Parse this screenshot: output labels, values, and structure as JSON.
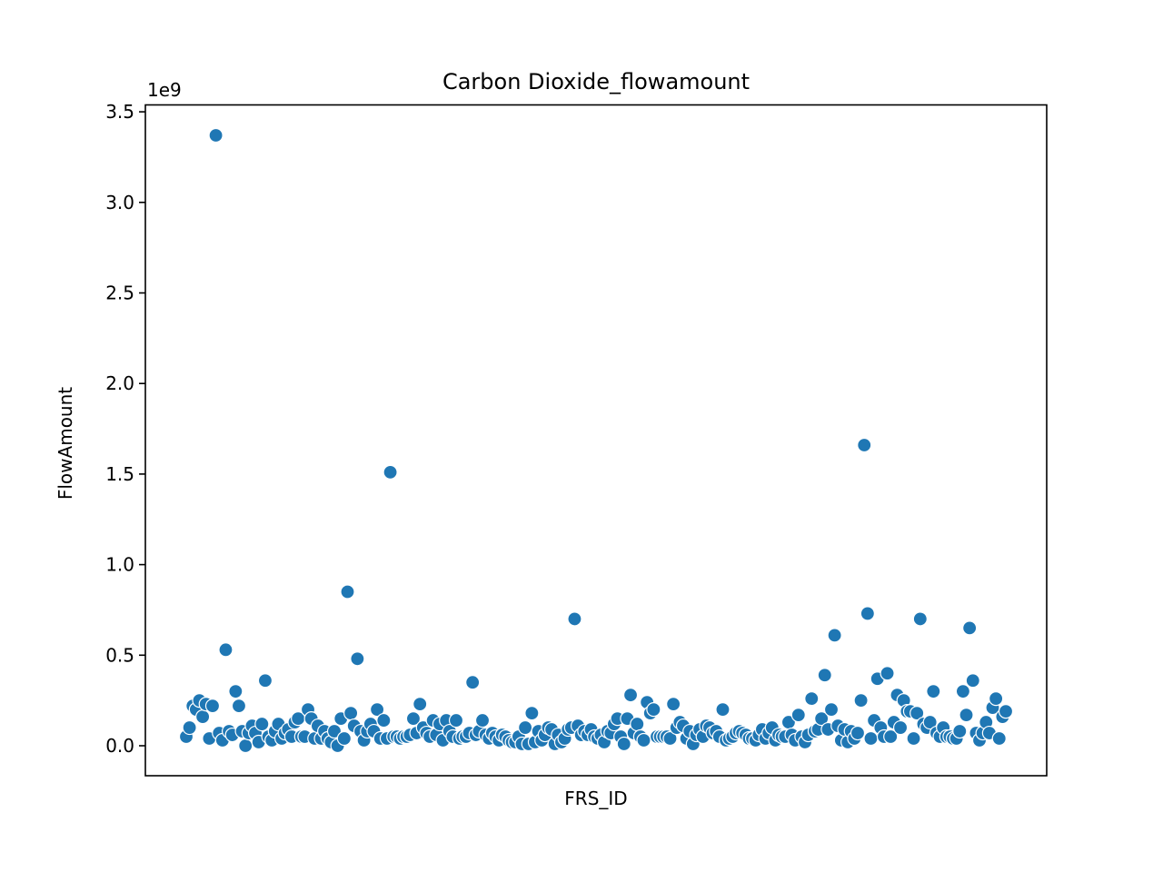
{
  "chart_data": {
    "type": "scatter",
    "title": "Carbon Dioxide_flowamount",
    "xlabel": "FRS_ID",
    "ylabel": "FlowAmount",
    "offset_label": "1e9",
    "ylim": [
      -0.17,
      3.53
    ],
    "yticks": [
      0.0,
      0.5,
      1.0,
      1.5,
      2.0,
      2.5,
      3.0,
      3.5
    ],
    "ytick_labels": [
      "0.0",
      "0.5",
      "1.0",
      "1.5",
      "2.0",
      "2.5",
      "3.0",
      "3.5"
    ],
    "xticks": [],
    "grid": false,
    "legend": "none",
    "marker_color": "#1f77b4",
    "values": [
      0.05,
      0.1,
      0.22,
      0.2,
      0.25,
      0.16,
      0.23,
      0.04,
      0.22,
      3.37,
      0.07,
      0.03,
      0.53,
      0.08,
      0.06,
      0.3,
      0.22,
      0.08,
      0.0,
      0.07,
      0.11,
      0.07,
      0.02,
      0.12,
      0.36,
      0.05,
      0.03,
      0.08,
      0.12,
      0.04,
      0.07,
      0.09,
      0.05,
      0.13,
      0.15,
      0.05,
      0.05,
      0.2,
      0.15,
      0.04,
      0.11,
      0.04,
      0.08,
      0.04,
      0.02,
      0.08,
      0.0,
      0.15,
      0.04,
      0.85,
      0.18,
      0.11,
      0.48,
      0.08,
      0.03,
      0.08,
      0.12,
      0.08,
      0.2,
      0.04,
      0.14,
      0.04,
      1.51,
      0.05,
      0.05,
      0.04,
      0.05,
      0.05,
      0.06,
      0.15,
      0.07,
      0.23,
      0.1,
      0.07,
      0.05,
      0.14,
      0.06,
      0.12,
      0.03,
      0.14,
      0.08,
      0.05,
      0.14,
      0.04,
      0.05,
      0.05,
      0.07,
      0.35,
      0.06,
      0.08,
      0.14,
      0.06,
      0.04,
      0.07,
      0.05,
      0.03,
      0.06,
      0.05,
      0.03,
      0.02,
      0.02,
      0.05,
      0.01,
      0.1,
      0.01,
      0.18,
      0.02,
      0.08,
      0.03,
      0.06,
      0.1,
      0.09,
      0.01,
      0.06,
      0.02,
      0.04,
      0.09,
      0.1,
      0.7,
      0.11,
      0.06,
      0.08,
      0.06,
      0.09,
      0.05,
      0.04,
      0.06,
      0.02,
      0.08,
      0.07,
      0.12,
      0.15,
      0.05,
      0.01,
      0.15,
      0.28,
      0.07,
      0.12,
      0.05,
      0.03,
      0.24,
      0.18,
      0.2,
      0.05,
      0.05,
      0.05,
      0.05,
      0.04,
      0.23,
      0.1,
      0.13,
      0.11,
      0.04,
      0.08,
      0.01,
      0.06,
      0.09,
      0.05,
      0.11,
      0.1,
      0.07,
      0.08,
      0.05,
      0.2,
      0.03,
      0.04,
      0.05,
      0.07,
      0.08,
      0.07,
      0.06,
      0.04,
      0.04,
      0.03,
      0.06,
      0.09,
      0.04,
      0.07,
      0.1,
      0.03,
      0.06,
      0.05,
      0.05,
      0.13,
      0.06,
      0.03,
      0.17,
      0.05,
      0.02,
      0.06,
      0.26,
      0.08,
      0.09,
      0.15,
      0.39,
      0.09,
      0.2,
      0.61,
      0.11,
      0.03,
      0.09,
      0.02,
      0.08,
      0.04,
      0.07,
      0.25,
      1.66,
      0.73,
      0.04,
      0.14,
      0.37,
      0.1,
      0.05,
      0.4,
      0.05,
      0.13,
      0.28,
      0.1,
      0.25,
      0.19,
      0.19,
      0.04,
      0.18,
      0.7,
      0.12,
      0.1,
      0.13,
      0.3,
      0.07,
      0.05,
      0.1,
      0.05,
      0.05,
      0.04,
      0.04,
      0.08,
      0.3,
      0.17,
      0.65,
      0.36,
      0.07,
      0.03,
      0.07,
      0.13,
      0.07,
      0.21,
      0.26,
      0.04,
      0.16,
      0.19
    ]
  }
}
